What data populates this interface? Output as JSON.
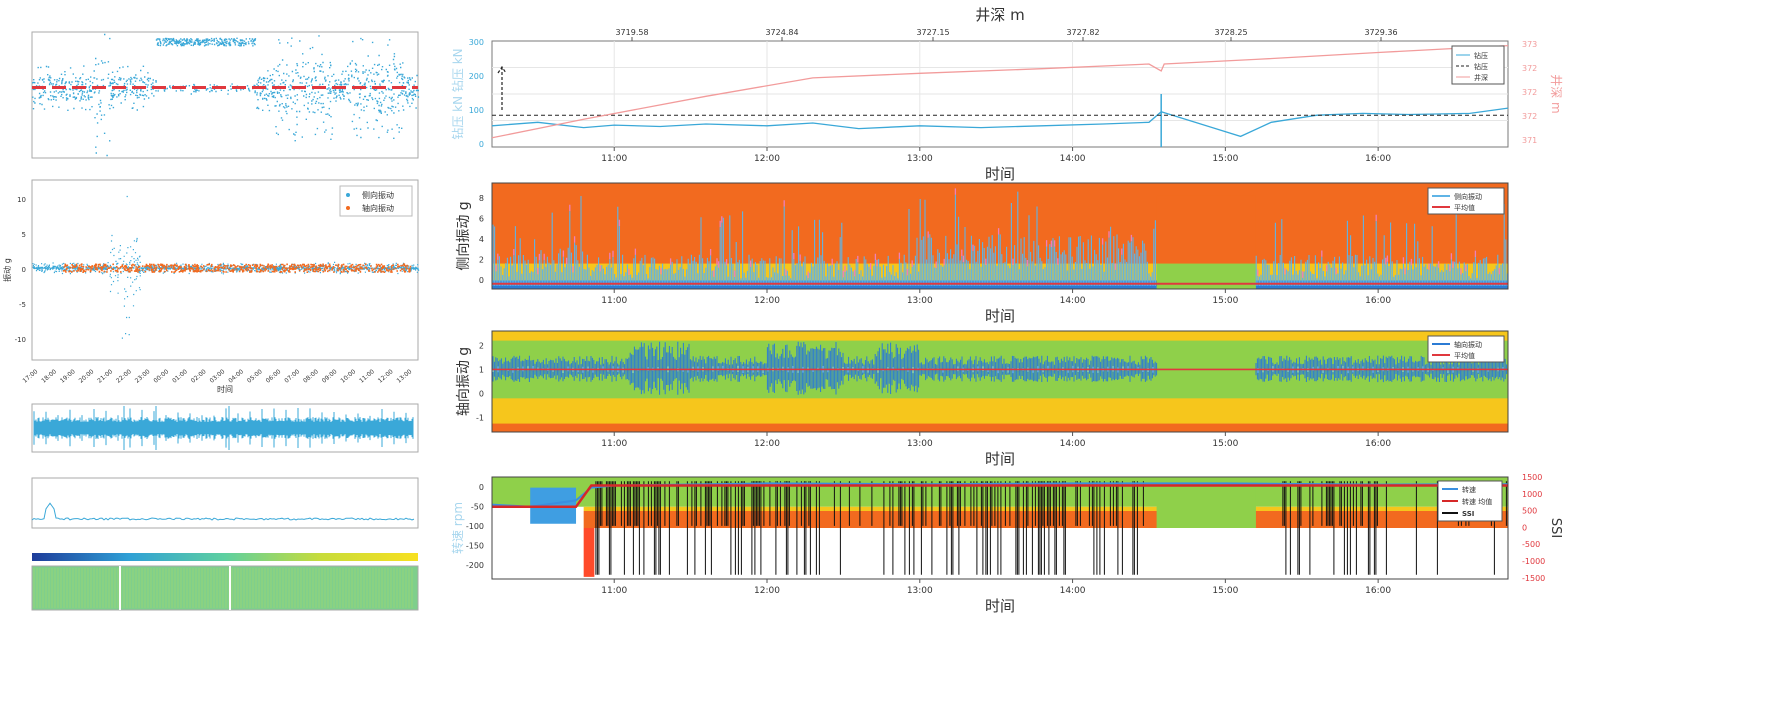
{
  "top_axis_title": "井深 m",
  "colors": {
    "cyan": "#3aa8d8",
    "blue": "#2b7bd4",
    "red": "#e0383e",
    "orange": "#f26a1f",
    "yellow": "#f6c61c",
    "green": "#8fd04a",
    "pink": "#f29b9b",
    "black": "#111111"
  },
  "left_panels": {
    "panel2_legend": [
      "侧向振动",
      "轴向振动"
    ],
    "panel2_xlabel": "时间",
    "panel2_ylabel": "振动 g",
    "panel2_yticks": [
      "10",
      "5",
      "0",
      "-5",
      "-10"
    ],
    "panel2_xticks": [
      "17:00",
      "18:00",
      "19:00",
      "20:00",
      "21:00",
      "22:00",
      "23:00",
      "00:00",
      "01:00",
      "02:00",
      "03:00",
      "04:00",
      "05:00",
      "06:00",
      "07:00",
      "08:00",
      "09:00",
      "10:00",
      "11:00",
      "12:00",
      "13:00"
    ]
  },
  "chart_data": [
    {
      "type": "line",
      "name_key": "hookload_depth",
      "top_ticks": [
        "3719.58",
        "3724.84",
        "3727.15",
        "3727.82",
        "3728.25",
        "3729.36"
      ],
      "x_ticks": [
        "11:00",
        "12:00",
        "13:00",
        "14:00",
        "15:00",
        "16:00"
      ],
      "xlabel": "时间",
      "ylabel": "钻压 kN 钻压 kN",
      "ylabel2": "井深 m",
      "y_ticks": [
        "300",
        "200",
        "100",
        "0"
      ],
      "y2_ticks": [
        "373",
        "372",
        "372",
        "372",
        "371"
      ],
      "legend": [
        "钻压",
        "钻压",
        "井深"
      ],
      "series": [
        {
          "name": "钻压",
          "x": [
            10.2,
            10.5,
            10.8,
            11.0,
            11.3,
            11.6,
            12.0,
            12.3,
            12.6,
            13.0,
            13.4,
            13.8,
            14.2,
            14.5,
            14.58,
            15.1,
            15.3,
            15.6,
            15.9,
            16.2,
            16.6,
            16.85
          ],
          "values": [
            60,
            70,
            55,
            62,
            58,
            65,
            60,
            68,
            52,
            60,
            55,
            60,
            65,
            70,
            100,
            30,
            70,
            90,
            95,
            92,
            95,
            110
          ]
        },
        {
          "name": "钻压",
          "x": [
            10.2,
            16.85
          ],
          "values": [
            90,
            90
          ]
        },
        {
          "name": "井深",
          "x": [
            10.2,
            10.8,
            11.6,
            12.3,
            13.0,
            13.8,
            14.5,
            14.58,
            14.6,
            15.2,
            16.0,
            16.85
          ],
          "values": [
            371.0,
            371.4,
            371.9,
            372.3,
            372.4,
            372.5,
            372.6,
            372.45,
            372.6,
            372.7,
            372.85,
            373.0
          ]
        }
      ]
    },
    {
      "type": "area",
      "name_key": "lateral_vibration",
      "x_ticks": [
        "11:00",
        "12:00",
        "13:00",
        "14:00",
        "15:00",
        "16:00"
      ],
      "xlabel": "时间",
      "ylabel": "侧向振动 g",
      "y_ticks": [
        "8",
        "6",
        "4",
        "2",
        "0"
      ],
      "ylim": [
        0,
        10
      ],
      "legend": [
        "侧向振动",
        "平均值"
      ],
      "bands": [
        {
          "from": 0,
          "to": 0.8,
          "color": "blue"
        },
        {
          "from": 0.8,
          "to": 2.4,
          "color": "yellow"
        },
        {
          "from": 2.4,
          "to": 10,
          "color": "orange"
        }
      ],
      "series": [
        {
          "name": "侧向振动",
          "x": [
            10.2,
            10.4,
            10.6,
            10.8,
            11.0,
            11.2,
            11.4,
            11.6,
            11.8,
            12.0,
            12.2,
            12.4,
            12.6,
            12.8,
            13.0,
            13.2,
            13.4,
            13.6,
            13.8,
            14.0,
            14.2,
            14.4,
            14.55,
            15.2,
            15.4,
            15.6,
            15.8,
            16.0,
            16.2,
            16.4,
            16.6,
            16.85
          ],
          "values": [
            4,
            6,
            5,
            8,
            4,
            5,
            3,
            6,
            4,
            5,
            3,
            4,
            5,
            4,
            7,
            8,
            6,
            7,
            8,
            6,
            7,
            6,
            5,
            5,
            6,
            7,
            5,
            6,
            8,
            7,
            6,
            6
          ]
        },
        {
          "name": "平均值",
          "x": [
            10.2,
            16.85
          ],
          "values": [
            0.5,
            0.5
          ]
        }
      ]
    },
    {
      "type": "area",
      "name_key": "axial_vibration",
      "x_ticks": [
        "11:00",
        "12:00",
        "13:00",
        "14:00",
        "15:00",
        "16:00"
      ],
      "xlabel": "时间",
      "ylabel": "轴向振动 g",
      "y_ticks": [
        "2",
        "1",
        "0",
        "-1"
      ],
      "ylim": [
        -1.6,
        2.6
      ],
      "legend": [
        "轴向振动",
        "平均值"
      ],
      "series": [
        {
          "name": "轴向振动",
          "x": [
            10.2,
            10.5,
            10.8,
            11.0,
            11.2,
            11.5,
            11.8,
            12.0,
            12.3,
            12.6,
            12.9,
            13.2,
            13.5,
            13.8,
            14.1,
            14.4,
            14.55,
            15.2,
            15.5,
            15.8,
            16.1,
            16.4,
            16.85
          ],
          "values": [
            0.6,
            0.4,
            0.8,
            0.3,
            0.2,
            0.5,
            0.2,
            0.3,
            0.6,
            0.4,
            -0.3,
            0.5,
            0.4,
            0.3,
            0.5,
            0.4,
            0.3,
            0.4,
            0.5,
            0.4,
            0.5,
            0.4,
            0.5
          ]
        },
        {
          "name": "平均值",
          "x": [
            10.2,
            16.85
          ],
          "values": [
            1,
            1
          ]
        }
      ]
    },
    {
      "type": "line",
      "name_key": "rotary_speed_ssi",
      "x_ticks": [
        "11:00",
        "12:00",
        "13:00",
        "14:00",
        "15:00",
        "16:00"
      ],
      "xlabel": "时间",
      "ylabel": "转速 rpm",
      "ylabel2": "SSI",
      "y_ticks": [
        "0",
        "-50",
        "-100",
        "-150",
        "-200"
      ],
      "y2_ticks": [
        "1500",
        "1000",
        "500",
        "0",
        "-500",
        "-1000",
        "-1500"
      ],
      "legend": [
        "转速",
        "转速 均值",
        "SSI"
      ],
      "series": [
        {
          "name": "转速",
          "x": [
            10.2,
            10.45,
            10.75,
            10.85,
            11.0,
            12.0,
            13.0,
            14.0,
            15.0,
            16.0,
            16.85
          ],
          "values": [
            -50,
            -55,
            -40,
            -10,
            -5,
            0,
            -2,
            0,
            0,
            -3,
            -2
          ]
        },
        {
          "name": "转速 均值",
          "x": [
            10.2,
            10.75,
            10.85,
            16.85
          ],
          "values": [
            -55,
            -55,
            -5,
            -5
          ]
        }
      ]
    }
  ]
}
